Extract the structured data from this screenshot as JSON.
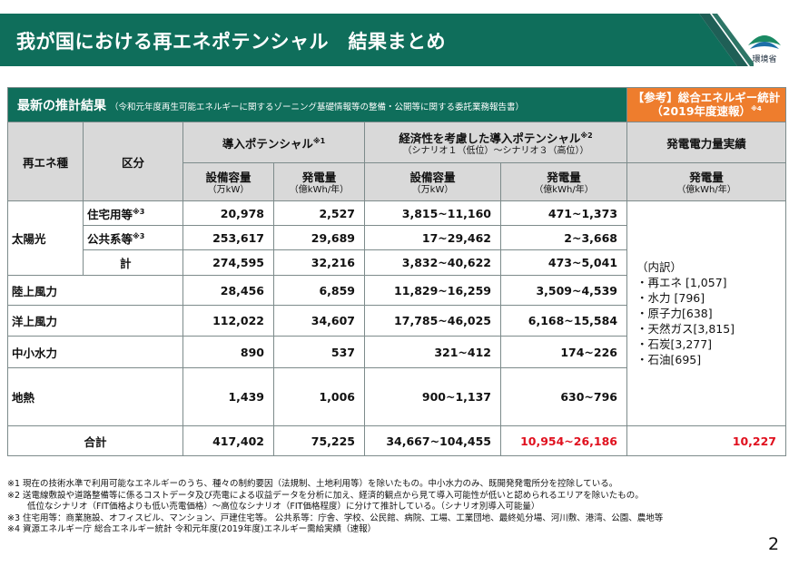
{
  "header": {
    "title": "我が国における再エネポテンシャル　結果まとめ"
  },
  "logo": {
    "caption": "環境省"
  },
  "table": {
    "banner_title": "最新の推計結果",
    "banner_subtitle": "（令和元年度再生可能エネルギーに関するゾーニング基礎情報等の整備・公開等に関する委託業務報告書）",
    "ref_line1": "【参考】総合エネルギー統計",
    "ref_line2": "（2019年度速報）",
    "ref_mark": "※4",
    "col_type": "再エネ種",
    "col_class": "区分",
    "col_potential": "導入ポテンシャル",
    "col_potential_mark": "※1",
    "col_econ": "経済性を考慮した導入ポテンシャル",
    "col_econ_mark": "※2",
    "col_econ_sub": "（シナリオ１（低位）～シナリオ３（高位））",
    "col_actual": "発電電力量実績",
    "cap_label": "設備容量",
    "cap_unit": "（万kW）",
    "gen_label": "発電量",
    "gen_unit": "（億kWh/年）",
    "solar_label": "太陽光",
    "rows": {
      "residential": {
        "label": "住宅用等",
        "mark": "※3",
        "cap": "20,978",
        "gen": "2,527",
        "econ_cap": "3,815~11,160",
        "econ_gen": "471~1,373"
      },
      "public": {
        "label": "公共系等",
        "mark": "※3",
        "cap": "253,617",
        "gen": "29,689",
        "econ_cap": "17~29,462",
        "econ_gen": "2~3,668"
      },
      "solar_total": {
        "label": "計",
        "cap": "274,595",
        "gen": "32,216",
        "econ_cap": "3,832~40,622",
        "econ_gen": "473~5,041"
      },
      "onshore_wind": {
        "label": "陸上風力",
        "cap": "28,456",
        "gen": "6,859",
        "econ_cap": "11,829~16,259",
        "econ_gen": "3,509~4,539"
      },
      "offshore_wind": {
        "label": "洋上風力",
        "cap": "112,022",
        "gen": "34,607",
        "econ_cap": "17,785~46,025",
        "econ_gen": "6,168~15,584"
      },
      "small_hydro": {
        "label": "中小水力",
        "cap": "890",
        "gen": "537",
        "econ_cap": "321~412",
        "econ_gen": "174~226"
      },
      "geothermal": {
        "label": "地熱",
        "cap": "1,439",
        "gen": "1,006",
        "econ_cap": "900~1,137",
        "econ_gen": "630~796"
      },
      "total": {
        "label": "合計",
        "cap": "417,402",
        "gen": "75,225",
        "econ_cap": "34,667~104,455",
        "econ_gen": "10,954~26,186",
        "actual": "10,227"
      }
    },
    "breakdown_title": "（内訳）",
    "breakdown": [
      "・再エネ [1,057]",
      "・水力 [796]",
      "・原子力[638]",
      "・天然ガス[3,815]",
      "・石炭[3,277]",
      "・石油[695]"
    ]
  },
  "notes": [
    "※1  現在の技術水準で利用可能なエネルギーのうち、種々の制約要因（法規制、土地利用等）を除いたもの。中小水力のみ、既開発発電所分を控除している。",
    "※2  送電線敷設や道路整備等に係るコストデータ及び売電による収益データを分析に加え、経済的観点から見て導入可能性が低いと認められるエリアを除いたもの。",
    "低位なシナリオ（FIT価格よりも低い売電価格）～高位なシナリオ（FIT価格程度）に分けて推計している。（シナリオ別導入可能量）",
    "※3  住宅用等：商業施設、オフィスビル、マンション、戸建住宅等。  公共系等：庁舎、学校、公民館、病院、工場、工業団地、最終処分場、河川敷、港湾、公園、農地等",
    "※4  資源エネルギー庁 総合エネルギー統計 令和元年度(2019年度)エネルギー需給実績（速報）"
  ],
  "page_number": "2",
  "colors": {
    "brand_green": "#0f6e5b",
    "ref_orange": "#ee7d2d",
    "highlight_red": "#e0101e"
  }
}
